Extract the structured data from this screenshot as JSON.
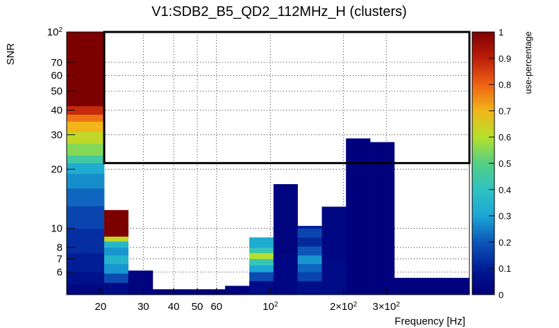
{
  "chart_data": {
    "type": "heatmap",
    "title": "V1:SDB2_B5_QD2_112MHz_H (clusters)",
    "xlabel": "Frequency [Hz]",
    "ylabel": "SNR",
    "zlabel": "use-percentage",
    "x_scale": "log",
    "y_scale": "log",
    "xlim": [
      14.5,
      660
    ],
    "ylim": [
      4.6,
      100
    ],
    "zlim": [
      0,
      1
    ],
    "x_ticks": [
      {
        "value": 20,
        "label": "20"
      },
      {
        "value": 30,
        "label": "30"
      },
      {
        "value": 40,
        "label": "40"
      },
      {
        "value": 50,
        "label": "50"
      },
      {
        "value": 60,
        "label": "60"
      },
      {
        "value": 100,
        "label": "10^2"
      },
      {
        "value": 200,
        "label": "2×10^2"
      },
      {
        "value": 300,
        "label": "3×10^2"
      }
    ],
    "y_ticks": [
      {
        "value": 6,
        "label": "6"
      },
      {
        "value": 7,
        "label": "7"
      },
      {
        "value": 8,
        "label": "8"
      },
      {
        "value": 10,
        "label": "10"
      },
      {
        "value": 20,
        "label": "20"
      },
      {
        "value": 30,
        "label": "30"
      },
      {
        "value": 40,
        "label": "40"
      },
      {
        "value": 50,
        "label": "50"
      },
      {
        "value": 60,
        "label": "60"
      },
      {
        "value": 70,
        "label": "70"
      },
      {
        "value": 100,
        "label": "10^2"
      }
    ],
    "z_ticks": [
      "0",
      "0.1",
      "0.2",
      "0.3",
      "0.4",
      "0.5",
      "0.6",
      "0.7",
      "0.8",
      "0.9",
      "1"
    ],
    "columns": [
      {
        "f_min": 14.5,
        "f_max": 20.7,
        "segments": [
          {
            "y0": 4.6,
            "y1": 5.2,
            "z": 0.03
          },
          {
            "y0": 5.2,
            "y1": 6.0,
            "z": 0.07
          },
          {
            "y0": 6.0,
            "y1": 7.5,
            "z": 0.1
          },
          {
            "y0": 7.5,
            "y1": 10.0,
            "z": 0.13
          },
          {
            "y0": 10.0,
            "y1": 13.0,
            "z": 0.17
          },
          {
            "y0": 13.0,
            "y1": 16.0,
            "z": 0.22
          },
          {
            "y0": 16.0,
            "y1": 19.0,
            "z": 0.27
          },
          {
            "y0": 19.0,
            "y1": 21.5,
            "z": 0.32
          },
          {
            "y0": 21.5,
            "y1": 23.5,
            "z": 0.45
          },
          {
            "y0": 23.5,
            "y1": 27.0,
            "z": 0.55
          },
          {
            "y0": 27.0,
            "y1": 31.0,
            "z": 0.62
          },
          {
            "y0": 31.0,
            "y1": 35.0,
            "z": 0.7
          },
          {
            "y0": 35.0,
            "y1": 38.0,
            "z": 0.78
          },
          {
            "y0": 38.0,
            "y1": 42.0,
            "z": 0.88
          },
          {
            "y0": 42.0,
            "y1": 100,
            "z": 1.0
          }
        ]
      },
      {
        "f_min": 20.7,
        "f_max": 26.0,
        "segments": [
          {
            "y0": 4.6,
            "y1": 5.3,
            "z": 0.05
          },
          {
            "y0": 5.3,
            "y1": 5.9,
            "z": 0.18
          },
          {
            "y0": 5.9,
            "y1": 6.6,
            "z": 0.28
          },
          {
            "y0": 6.6,
            "y1": 7.3,
            "z": 0.35
          },
          {
            "y0": 7.3,
            "y1": 8.0,
            "z": 0.28
          },
          {
            "y0": 8.0,
            "y1": 8.6,
            "z": 0.36
          },
          {
            "y0": 8.6,
            "y1": 9.1,
            "z": 0.62
          },
          {
            "y0": 9.1,
            "y1": 12.4,
            "z": 1.0
          }
        ]
      },
      {
        "f_min": 26.0,
        "f_max": 32.8,
        "segments": [
          {
            "y0": 4.6,
            "y1": 6.1,
            "z": 0.02
          }
        ]
      },
      {
        "f_min": 32.8,
        "f_max": 41.2,
        "segments": [
          {
            "y0": 4.6,
            "y1": 4.9,
            "z": 0.01
          }
        ]
      },
      {
        "f_min": 41.2,
        "f_max": 51.8,
        "segments": [
          {
            "y0": 4.6,
            "y1": 4.9,
            "z": 0.01
          }
        ]
      },
      {
        "f_min": 51.8,
        "f_max": 65.1,
        "segments": [
          {
            "y0": 4.6,
            "y1": 4.9,
            "z": 0.01
          }
        ]
      },
      {
        "f_min": 65.1,
        "f_max": 81.9,
        "segments": [
          {
            "y0": 4.6,
            "y1": 5.1,
            "z": 0.01
          }
        ]
      },
      {
        "f_min": 81.9,
        "f_max": 103.0,
        "segments": [
          {
            "y0": 4.6,
            "y1": 5.4,
            "z": 0.05
          },
          {
            "y0": 5.4,
            "y1": 6.0,
            "z": 0.18
          },
          {
            "y0": 6.0,
            "y1": 6.5,
            "z": 0.3
          },
          {
            "y0": 6.5,
            "y1": 7.0,
            "z": 0.42
          },
          {
            "y0": 7.0,
            "y1": 7.5,
            "z": 0.6
          },
          {
            "y0": 7.5,
            "y1": 8.0,
            "z": 0.42
          },
          {
            "y0": 8.0,
            "y1": 9.0,
            "z": 0.32
          }
        ]
      },
      {
        "f_min": 103.0,
        "f_max": 129.5,
        "segments": [
          {
            "y0": 4.6,
            "y1": 7.5,
            "z": 0.03
          },
          {
            "y0": 7.5,
            "y1": 16.8,
            "z": 0.02
          }
        ]
      },
      {
        "f_min": 129.5,
        "f_max": 162.9,
        "segments": [
          {
            "y0": 4.6,
            "y1": 5.4,
            "z": 0.06
          },
          {
            "y0": 5.4,
            "y1": 6.0,
            "z": 0.17
          },
          {
            "y0": 6.0,
            "y1": 6.6,
            "z": 0.22
          },
          {
            "y0": 6.6,
            "y1": 7.3,
            "z": 0.28
          },
          {
            "y0": 7.3,
            "y1": 8.1,
            "z": 0.2
          },
          {
            "y0": 8.1,
            "y1": 9.0,
            "z": 0.12
          },
          {
            "y0": 9.0,
            "y1": 10.0,
            "z": 0.17
          },
          {
            "y0": 10.0,
            "y1": 10.3,
            "z": 0.1
          }
        ]
      },
      {
        "f_min": 162.9,
        "f_max": 204.8,
        "segments": [
          {
            "y0": 4.6,
            "y1": 7.0,
            "z": 0.05
          },
          {
            "y0": 7.0,
            "y1": 12.9,
            "z": 0.03
          }
        ]
      },
      {
        "f_min": 204.8,
        "f_max": 257.6,
        "segments": [
          {
            "y0": 4.6,
            "y1": 28.7,
            "z": 0.01
          }
        ]
      },
      {
        "f_min": 257.6,
        "f_max": 324.0,
        "segments": [
          {
            "y0": 4.6,
            "y1": 27.5,
            "z": 0.01
          }
        ]
      },
      {
        "f_min": 324.0,
        "f_max": 660.0,
        "segments": [
          {
            "y0": 4.6,
            "y1": 5.6,
            "z": 0.01
          }
        ]
      }
    ],
    "highlight_box": {
      "f_min": 20.7,
      "f_max": 660,
      "snr_min": 21.5,
      "snr_max": 100
    }
  }
}
